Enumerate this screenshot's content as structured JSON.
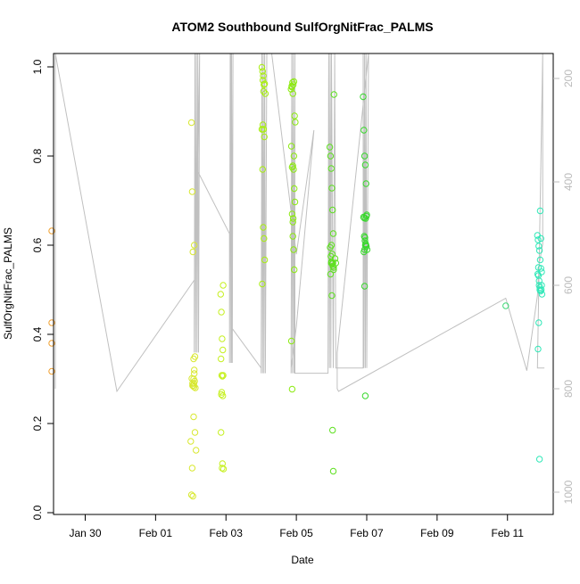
{
  "chart_data": {
    "type": "scatter",
    "title": "ATOM2 Southbound SulfOrgNitFrac_PALMS",
    "xlabel": "Date",
    "ylabel": "SulfOrgNitFrac_PALMS",
    "xlim": [
      -2.9,
      11.3
    ],
    "ylim": [
      0,
      1.0
    ],
    "y_ticks": [
      0.0,
      0.2,
      0.4,
      0.6,
      0.8,
      1.0
    ],
    "y_tick_labels": [
      "0.0",
      "0.2",
      "0.4",
      "0.6",
      "0.8",
      "1.0"
    ],
    "x_ticks": [
      -2,
      0,
      2,
      4,
      6,
      8,
      10
    ],
    "x_tick_labels": [
      "Jan 30",
      "Feb 01",
      "Feb 03",
      "Feb 05",
      "Feb 07",
      "Feb 09",
      "Feb 11"
    ],
    "y2_lim": [
      1050,
      130
    ],
    "y2_ticks": [
      200,
      400,
      600,
      800,
      1000
    ],
    "y2_tick_labels": [
      "200",
      "400",
      "600",
      "800",
      "1000"
    ],
    "grid": false,
    "colors": {
      "axis": "#000000",
      "secondary_axis": "#bbbbbb",
      "pressure_trace": "#c0c0c0"
    },
    "pressure_trace": {
      "x": [
        -3.0,
        -3.0,
        -1.1,
        1.1,
        1.1,
        1.12,
        1.14,
        1.16,
        1.18,
        1.2,
        1.22,
        1.25,
        1.2,
        2.1,
        2.1,
        2.12,
        2.14,
        2.16,
        2.18,
        2.2,
        2.17,
        2.14,
        2.14,
        3.0,
        3.0,
        3.02,
        3.04,
        3.06,
        3.08,
        3.1,
        3.12,
        3.16,
        3.3,
        4.0,
        4.5,
        4.0,
        3.85,
        3.85,
        3.87,
        3.89,
        3.91,
        3.93,
        3.96,
        3.96,
        4.9,
        4.9,
        4.92,
        4.94,
        4.96,
        4.98,
        5.0,
        5.05,
        5.09,
        5.12,
        5.9,
        5.9,
        5.92,
        5.94,
        5.96,
        5.98,
        6.0,
        6.05,
        5.16,
        5.16,
        5.2,
        9.95,
        10.55,
        10.85,
        10.9,
        11.0,
        11.0,
        10.85,
        11.05
      ],
      "pressure": [
        800,
        130,
        805,
        590,
        730,
        130,
        730,
        130,
        730,
        130,
        730,
        130,
        380,
        500,
        750,
        130,
        750,
        130,
        750,
        130,
        750,
        130,
        680,
        760,
        770,
        130,
        770,
        130,
        770,
        130,
        770,
        130,
        130,
        540,
        300,
        680,
        760,
        770,
        130,
        770,
        130,
        770,
        130,
        770,
        770,
        760,
        130,
        760,
        130,
        760,
        130,
        760,
        130,
        760,
        760,
        130,
        760,
        130,
        760,
        130,
        760,
        130,
        730,
        800,
        805,
        625,
        765,
        620,
        560,
        520,
        130,
        760,
        760
      ]
    },
    "series": [
      {
        "color": "#f0a030",
        "x": [
          -2.95,
          -2.95,
          -2.95,
          -2.95
        ],
        "y": [
          0.632,
          0.426,
          0.38,
          0.317
        ]
      },
      {
        "color": "#d8e830",
        "x": [
          1.02,
          1.04,
          1.06,
          1.08,
          1.1,
          1.03,
          1.05,
          1.07,
          1.09,
          1.11,
          1.13,
          1.08,
          1.12,
          1.0,
          1.15,
          1.04,
          1.02,
          1.06,
          1.1,
          1.12,
          1.08,
          1.05,
          1.1,
          1.09
        ],
        "y": [
          0.875,
          0.72,
          0.585,
          0.345,
          0.312,
          0.301,
          0.29,
          0.285,
          0.282,
          0.295,
          0.28,
          0.215,
          0.18,
          0.16,
          0.14,
          0.1,
          0.04,
          0.037,
          0.6,
          0.35,
          0.3,
          0.285,
          0.32,
          0.29
        ]
      },
      {
        "color": "#c6f020",
        "x": [
          1.85,
          1.87,
          1.89,
          1.91,
          1.86,
          1.88,
          1.9,
          1.92,
          1.88,
          1.91,
          1.86,
          1.9,
          1.89,
          1.93,
          1.87,
          1.92
        ],
        "y": [
          0.49,
          0.45,
          0.39,
          0.365,
          0.345,
          0.308,
          0.306,
          0.308,
          0.27,
          0.262,
          0.18,
          0.11,
          0.1,
          0.098,
          0.265,
          0.51
        ]
      },
      {
        "color": "#a8ee10",
        "x": [
          3.02,
          3.04,
          3.06,
          3.08,
          3.1,
          3.12,
          3.03,
          3.05,
          3.07,
          3.09,
          3.04,
          3.06,
          3.08,
          3.1,
          3.03,
          3.05,
          3.07,
          3.02
        ],
        "y": [
          0.999,
          0.99,
          0.98,
          0.96,
          0.962,
          0.94,
          0.86,
          0.87,
          0.86,
          0.843,
          0.77,
          0.64,
          0.615,
          0.567,
          0.513,
          0.97,
          0.945,
          0.86
        ]
      },
      {
        "color": "#8cea10",
        "x": [
          3.85,
          3.87,
          3.89,
          3.91,
          3.93,
          3.95,
          3.97,
          3.86,
          3.88,
          3.9,
          3.92,
          3.94,
          3.96,
          3.88,
          3.9,
          3.92,
          3.94,
          3.86,
          3.88,
          3.9,
          3.87,
          3.93,
          3.91,
          3.9
        ],
        "y": [
          0.95,
          0.955,
          0.965,
          0.96,
          0.967,
          0.89,
          0.876,
          0.822,
          0.775,
          0.778,
          0.77,
          0.727,
          0.697,
          0.67,
          0.652,
          0.59,
          0.545,
          0.385,
          0.277,
          0.94,
          0.957,
          0.8,
          0.66,
          0.62
        ]
      },
      {
        "color": "#5ee020",
        "x": [
          4.95,
          4.97,
          4.99,
          5.01,
          5.03,
          5.05,
          4.96,
          4.98,
          5.0,
          5.02,
          5.04,
          5.06,
          4.97,
          4.99,
          5.01,
          5.03,
          5.05,
          5.07,
          5.0,
          5.02,
          5.04,
          5.06,
          5.1,
          5.12
        ],
        "y": [
          0.82,
          0.8,
          0.772,
          0.728,
          0.679,
          0.626,
          0.595,
          0.575,
          0.563,
          0.558,
          0.553,
          0.545,
          0.535,
          0.56,
          0.487,
          0.185,
          0.093,
          0.938,
          0.6,
          0.58,
          0.56,
          0.55,
          0.57,
          0.56
        ]
      },
      {
        "color": "#38d82c",
        "x": [
          5.9,
          5.92,
          5.94,
          5.96,
          5.98,
          6.0,
          5.91,
          5.93,
          5.95,
          5.97,
          5.99,
          6.01,
          5.92,
          5.94,
          5.96,
          5.98,
          5.93,
          5.95,
          5.97,
          5.99,
          5.94,
          5.96
        ],
        "y": [
          0.933,
          0.858,
          0.8,
          0.78,
          0.738,
          0.668,
          0.663,
          0.661,
          0.617,
          0.603,
          0.597,
          0.59,
          0.585,
          0.508,
          0.262,
          0.6,
          0.62,
          0.61,
          0.66,
          0.665,
          0.59,
          0.6
        ]
      },
      {
        "color": "#40d878",
        "x": [
          9.95
        ],
        "y": [
          0.464
        ]
      },
      {
        "color": "#30e8b8",
        "x": [
          10.85,
          10.87,
          10.89,
          10.91,
          10.93,
          10.95,
          10.97,
          10.86,
          10.88,
          10.9,
          10.92,
          10.94,
          10.96,
          10.98,
          10.87,
          10.89,
          10.91,
          10.93,
          10.95,
          10.97,
          10.88,
          10.9,
          10.92
        ],
        "y": [
          0.622,
          0.612,
          0.598,
          0.588,
          0.567,
          0.548,
          0.54,
          0.535,
          0.532,
          0.51,
          0.5,
          0.497,
          0.5,
          0.49,
          0.367,
          0.426,
          0.12,
          0.677,
          0.615,
          0.51,
          0.55,
          0.52,
          0.505
        ]
      }
    ]
  }
}
